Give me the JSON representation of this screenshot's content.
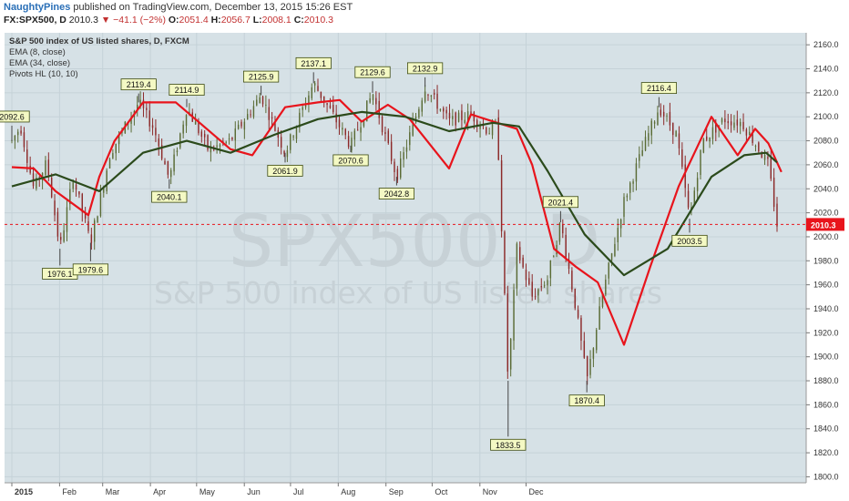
{
  "header": {
    "user": "NaughtyPines",
    "published": "published on TradingView.com, December 13, 2015 15:26 EST",
    "symbol": "FX:SPX500, D",
    "last": "2010.3",
    "change": "▼ −41.1 (−2%)",
    "o_label": "O:",
    "o_value": "2051.4",
    "h_label": "H:",
    "h_value": "2056.7",
    "l_label": "L:",
    "l_value": "2008.1",
    "c_label": "C:",
    "c_value": "2010.3"
  },
  "legend": {
    "title": "S&P 500 index of US listed shares, D, FXCM",
    "ema_fast": "EMA (8, close)",
    "ema_slow": "EMA (34, close)",
    "pivots": "Pivots HL (10, 10)"
  },
  "watermark": {
    "symbol": "SPX500, D",
    "description": "S&P 500 index of US listed shares"
  },
  "colors": {
    "background": "#d6e1e6",
    "grid": "#c5d2d8",
    "candle_up": "#5a6b35",
    "candle_down": "#8c2a2a",
    "ema_fast": "#e8141c",
    "ema_slow": "#2b4a1b",
    "last_price_line": "#e8141c",
    "pivot_label_bg": "#f4f9c4"
  },
  "chart_data": {
    "type": "candlestick",
    "title": "S&P 500 index of US listed shares, D, FXCM",
    "ylim": [
      1795,
      2170
    ],
    "y_ticks": [
      1800.0,
      1820.0,
      1840.0,
      1860.0,
      1880.0,
      1900.0,
      1920.0,
      1940.0,
      1960.0,
      1980.0,
      2000.0,
      2020.0,
      2040.0,
      2060.0,
      2080.0,
      2100.0,
      2120.0,
      2140.0,
      2160.0
    ],
    "x_labels": [
      "2015",
      "Feb",
      "Mar",
      "Apr",
      "May",
      "Jun",
      "Jul",
      "Aug",
      "Sep",
      "Oct",
      "Nov",
      "Dec"
    ],
    "last_price": 2010.3,
    "grid": true,
    "series": [
      {
        "name": "EMA (8, close)",
        "x_day": [
          0,
          10,
          20,
          35,
          40,
          47,
          60,
          75,
          100,
          110,
          125,
          140,
          150,
          160,
          172,
          182,
          200,
          210,
          222,
          231,
          238,
          248,
          258,
          268,
          280,
          292,
          305,
          320,
          332,
          340,
          346,
          352
        ],
        "values": [
          2058,
          2057,
          2038,
          2018,
          2050,
          2080,
          2112,
          2112,
          2073,
          2068,
          2108,
          2112,
          2114,
          2096,
          2110,
          2098,
          2057,
          2102,
          2095,
          2090,
          2060,
          1990,
          1975,
          1962,
          1910,
          1975,
          2042,
          2100,
          2068,
          2090,
          2078,
          2054
        ]
      },
      {
        "name": "EMA (34, close)",
        "x_day": [
          0,
          20,
          40,
          60,
          80,
          100,
          120,
          140,
          160,
          180,
          200,
          220,
          232,
          245,
          262,
          280,
          300,
          320,
          335,
          345,
          350
        ],
        "values": [
          2042,
          2052,
          2038,
          2070,
          2080,
          2070,
          2085,
          2098,
          2104,
          2100,
          2088,
          2095,
          2092,
          2055,
          2002,
          1968,
          1990,
          2050,
          2068,
          2070,
          2062
        ]
      }
    ],
    "pivots": [
      {
        "day": 0,
        "value": 2092.6
      },
      {
        "day": 22,
        "value": 1976.1
      },
      {
        "day": 36,
        "value": 1979.6
      },
      {
        "day": 58,
        "value": 2119.4
      },
      {
        "day": 72,
        "value": 2040.1
      },
      {
        "day": 80,
        "value": 2114.9
      },
      {
        "day": 114,
        "value": 2125.9
      },
      {
        "day": 125,
        "value": 2061.9
      },
      {
        "day": 138,
        "value": 2137.1
      },
      {
        "day": 155,
        "value": 2070.6
      },
      {
        "day": 165,
        "value": 2129.6
      },
      {
        "day": 176,
        "value": 2042.8
      },
      {
        "day": 189,
        "value": 2132.9
      },
      {
        "day": 227,
        "value": 1833.5
      },
      {
        "day": 251,
        "value": 2021.4
      },
      {
        "day": 263,
        "value": 1870.4
      },
      {
        "day": 296,
        "value": 2116.4
      },
      {
        "day": 310,
        "value": 2003.5
      }
    ]
  }
}
